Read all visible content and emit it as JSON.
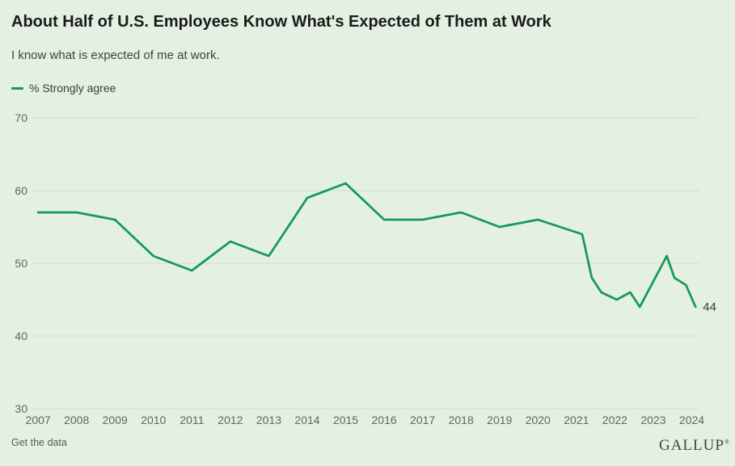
{
  "page": {
    "background_color": "#e4f0e2",
    "accent_color": "#149a55"
  },
  "header": {
    "title": "About Half of U.S. Employees Know What's Expected of Them at Work",
    "subtitle": "I know what is expected of me at work."
  },
  "legend": {
    "label": "% Strongly agree",
    "swatch_color": "#149a55"
  },
  "footer": {
    "link_label": "Get the data",
    "logo": "GALLUP",
    "logo_mark": "®"
  },
  "chart_data": {
    "type": "line",
    "title": "About Half of U.S. Employees Know What's Expected of Them at Work",
    "subtitle": "I know what is expected of me at work.",
    "legend_position": "top-left",
    "grid": "horizontal-only",
    "gridline_color": "#d4dbd1",
    "xlim": [
      2006.85,
      2024.2
    ],
    "ylim": [
      30,
      70
    ],
    "x_ticks": [
      2007,
      2008,
      2009,
      2010,
      2011,
      2012,
      2013,
      2014,
      2015,
      2016,
      2017,
      2018,
      2019,
      2020,
      2021,
      2022,
      2023,
      2024
    ],
    "y_ticks": [
      70,
      60,
      50,
      40,
      30
    ],
    "end_label": "44",
    "series": [
      {
        "name": "% Strongly agree",
        "color": "#149a55",
        "points": [
          [
            2007,
            57
          ],
          [
            2008,
            57
          ],
          [
            2009,
            56
          ],
          [
            2010,
            51
          ],
          [
            2011,
            49
          ],
          [
            2012,
            53
          ],
          [
            2013,
            51
          ],
          [
            2014,
            59
          ],
          [
            2015,
            61
          ],
          [
            2016,
            56
          ],
          [
            2017,
            56
          ],
          [
            2018,
            57
          ],
          [
            2019,
            55
          ],
          [
            2020,
            56
          ],
          [
            2021.15,
            54
          ],
          [
            2021.4,
            48
          ],
          [
            2021.65,
            46
          ],
          [
            2022.05,
            45
          ],
          [
            2022.4,
            46
          ],
          [
            2022.65,
            44
          ],
          [
            2023.35,
            51
          ],
          [
            2023.55,
            48
          ],
          [
            2023.85,
            47
          ],
          [
            2024.1,
            44
          ]
        ]
      }
    ]
  }
}
